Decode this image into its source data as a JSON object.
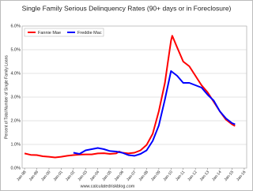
{
  "chart_data": {
    "type": "line",
    "title": "Single Family Serious Delinquency Rates (90+ days or in Foreclosure)",
    "y_label": "Percent of Total Number of Single Family Loans",
    "source": "www.calculatedriskblog.com",
    "xlim": [
      1997.8,
      2016.2
    ],
    "xticks": [
      {
        "value": 1998,
        "label": "Jan-98"
      },
      {
        "value": 1999,
        "label": "Jan-99"
      },
      {
        "value": 2000,
        "label": "Jan-00"
      },
      {
        "value": 2001,
        "label": "Jan-01"
      },
      {
        "value": 2002,
        "label": "Jan-02"
      },
      {
        "value": 2003,
        "label": "Jan-03"
      },
      {
        "value": 2004,
        "label": "Jan-04"
      },
      {
        "value": 2005,
        "label": "Jan-05"
      },
      {
        "value": 2006,
        "label": "Jan-06"
      },
      {
        "value": 2007,
        "label": "Jan-07"
      },
      {
        "value": 2008,
        "label": "Jan-08"
      },
      {
        "value": 2009,
        "label": "Jan-09"
      },
      {
        "value": 2010,
        "label": "Jan-10"
      },
      {
        "value": 2011,
        "label": "Jan-11"
      },
      {
        "value": 2012,
        "label": "Jan-12"
      },
      {
        "value": 2013,
        "label": "Jan-13"
      },
      {
        "value": 2014,
        "label": "Jan-14"
      },
      {
        "value": 2015,
        "label": "Jan-15"
      },
      {
        "value": 2016,
        "label": "Jan-16"
      }
    ],
    "ylim": [
      0,
      6
    ],
    "yticks": [
      {
        "value": 0,
        "label": "0.0%"
      },
      {
        "value": 1,
        "label": "1.0%"
      },
      {
        "value": 2,
        "label": "2.0%"
      },
      {
        "value": 3,
        "label": "3.0%"
      },
      {
        "value": 4,
        "label": "4.0%"
      },
      {
        "value": 5,
        "label": "5.0%"
      },
      {
        "value": 6,
        "label": "6.0%"
      }
    ],
    "grid": true,
    "legend": "top-left",
    "series": [
      {
        "name": "Fannie Mae",
        "color": "#ff0000",
        "x": [
          1998,
          1998.5,
          1999,
          1999.5,
          2000,
          2000.5,
          2001,
          2001.5,
          2002,
          2002.5,
          2003,
          2003.5,
          2004,
          2004.5,
          2005,
          2005.5,
          2005.75,
          2006,
          2006.5,
          2007,
          2007.5,
          2008,
          2008.5,
          2009,
          2009.5,
          2009.75,
          2010,
          2010.1,
          2010.5,
          2011,
          2011.5,
          2012,
          2012.5,
          2013,
          2013.5,
          2014,
          2014.5,
          2015,
          2015.25
        ],
        "values": [
          0.62,
          0.56,
          0.55,
          0.5,
          0.48,
          0.45,
          0.48,
          0.52,
          0.55,
          0.57,
          0.58,
          0.58,
          0.62,
          0.63,
          0.6,
          0.62,
          0.7,
          0.65,
          0.62,
          0.65,
          0.75,
          0.98,
          1.45,
          2.4,
          3.6,
          4.5,
          5.38,
          5.59,
          5.1,
          4.5,
          4.3,
          3.9,
          3.5,
          3.2,
          2.8,
          2.4,
          2.05,
          1.85,
          1.78
        ]
      },
      {
        "name": "Freddie Mac",
        "color": "#0000ff",
        "x": [
          2002,
          2002.5,
          2003,
          2003.5,
          2004,
          2004.5,
          2005,
          2005.5,
          2006,
          2006.5,
          2007,
          2007.5,
          2008,
          2008.5,
          2009,
          2009.5,
          2009.75,
          2010,
          2010.5,
          2011,
          2011.5,
          2012,
          2012.5,
          2013,
          2013.5,
          2014,
          2014.5,
          2015,
          2015.25
        ],
        "values": [
          0.65,
          0.6,
          0.75,
          0.8,
          0.85,
          0.8,
          0.72,
          0.7,
          0.65,
          0.55,
          0.52,
          0.6,
          0.75,
          1.15,
          1.8,
          2.9,
          3.5,
          4.1,
          3.9,
          3.6,
          3.6,
          3.5,
          3.4,
          3.1,
          2.85,
          2.4,
          2.1,
          1.9,
          1.85
        ]
      }
    ]
  }
}
